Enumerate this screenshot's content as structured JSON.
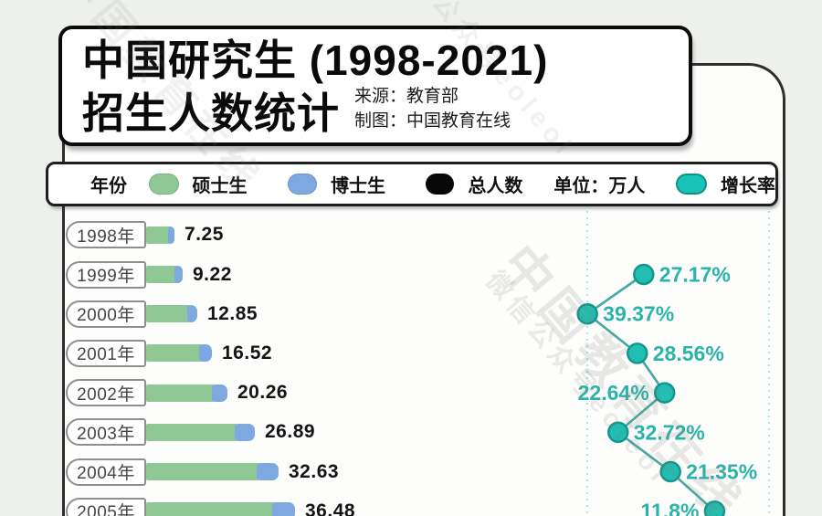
{
  "title_card": {
    "line1": "中国研究生 (1998-2021)",
    "line2": "招生人数统计",
    "source": "来源：教育部",
    "credit": "制图：中国教育在线"
  },
  "legend": {
    "year_label": "年份",
    "master_label": "硕士生",
    "doctor_label": "博士生",
    "total_label": "总人数",
    "unit_label": "单位：万人",
    "growth_label": "增长率"
  },
  "watermarks": {
    "brand": "中国教育在线",
    "wechat": "微信公众号eoleol"
  },
  "colors": {
    "master_green": "#8fc795",
    "doctor_blue": "#7ea8e0",
    "total_black": "#060606",
    "growth_teal": "#22bdb3",
    "growth_text": "#2bb3aa",
    "background": "#eef0eb"
  },
  "chart_data": {
    "type": "bar+line",
    "title": "中国研究生 (1998-2021) 招生人数统计",
    "unit": "万人",
    "source": "教育部",
    "credit": "中国教育在线",
    "categories": [
      "1998年",
      "1999年",
      "2000年",
      "2001年",
      "2002年",
      "2003年",
      "2004年",
      "2005年"
    ],
    "visible_years_note": "rows 1998-2005 visible; 2005 row clipped at bottom edge",
    "series": [
      {
        "name": "总人数",
        "role": "bar-total-label",
        "values": [
          7.25,
          9.22,
          12.85,
          16.52,
          20.26,
          26.89,
          32.63,
          36.48
        ],
        "labels": [
          "7.25",
          "9.22",
          "12.85",
          "16.52",
          "20.26",
          "26.89",
          "32.63",
          "36.48"
        ]
      },
      {
        "name": "硕士生",
        "role": "bar-segment",
        "color": "#8fc795",
        "values_est": [
          5.75,
          7.23,
          10.34,
          13.31,
          16.43,
          22.02,
          27.3,
          31.0
        ]
      },
      {
        "name": "博士生",
        "role": "bar-segment",
        "color": "#7ea8e0",
        "values_est": [
          1.5,
          1.99,
          2.51,
          3.21,
          3.83,
          4.87,
          5.33,
          5.48
        ]
      },
      {
        "name": "增长率",
        "role": "line",
        "color": "#22bdb3",
        "values": [
          null,
          27.17,
          39.37,
          28.56,
          22.64,
          32.72,
          21.35,
          11.8
        ],
        "labels": [
          null,
          "27.17%",
          "39.37%",
          "28.56%",
          "22.64%",
          "32.72%",
          "21.35%",
          "11.8%"
        ],
        "label_side": [
          null,
          "right",
          "right",
          "right",
          "left",
          "right",
          "right",
          "left"
        ]
      }
    ],
    "layout_hints": {
      "bars_grow_rightward": true,
      "growth_axis_inverted_rightward_zero": true,
      "dashed_guides": "two vertical teal dotted gridlines in growth area",
      "legend_position": "top horizontal bar"
    }
  }
}
